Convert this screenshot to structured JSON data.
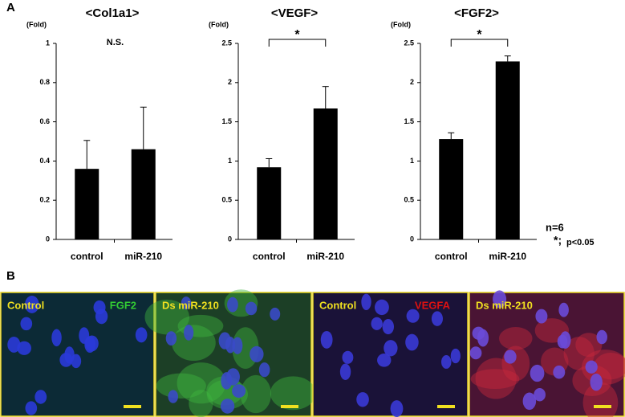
{
  "panel_labels": [
    "A",
    "B"
  ],
  "chart_data": [
    {
      "type": "bar",
      "title": "<Col1a1>",
      "y_unit": "(Fold)",
      "categories": [
        "control",
        "miR-210"
      ],
      "values": [
        0.36,
        0.46
      ],
      "errors": [
        0.145,
        0.215
      ],
      "color": "#000000",
      "ylim": [
        0,
        1
      ],
      "yticks": [
        0,
        0.2,
        0.4,
        0.6,
        0.8,
        1
      ],
      "annotation": "N.S."
    },
    {
      "type": "bar",
      "title": "<VEGF>",
      "y_unit": "(Fold)",
      "categories": [
        "control",
        "miR-210"
      ],
      "values": [
        0.92,
        1.67
      ],
      "errors": [
        0.11,
        0.28
      ],
      "color": "#000000",
      "ylim": [
        0,
        2.5
      ],
      "yticks": [
        0,
        0.5,
        1,
        1.5,
        2,
        2.5
      ],
      "significance": "*"
    },
    {
      "type": "bar",
      "title": "<FGF2>",
      "y_unit": "(Fold)",
      "categories": [
        "control",
        "miR-210"
      ],
      "values": [
        1.28,
        2.27
      ],
      "errors": [
        0.08,
        0.07
      ],
      "color": "#000000",
      "ylim": [
        0,
        2.5
      ],
      "yticks": [
        0,
        0.5,
        1,
        1.5,
        2,
        2.5
      ],
      "significance": "*"
    }
  ],
  "notes": {
    "n": "n=6",
    "sig_marker": "*;",
    "sig_text": "p<0.05"
  },
  "images": [
    {
      "label": "Control",
      "marker": "FGF2"
    },
    {
      "label": "Ds miR-210"
    },
    {
      "label": "Control",
      "marker": "VEGFA"
    },
    {
      "label": "Ds miR-210"
    }
  ]
}
